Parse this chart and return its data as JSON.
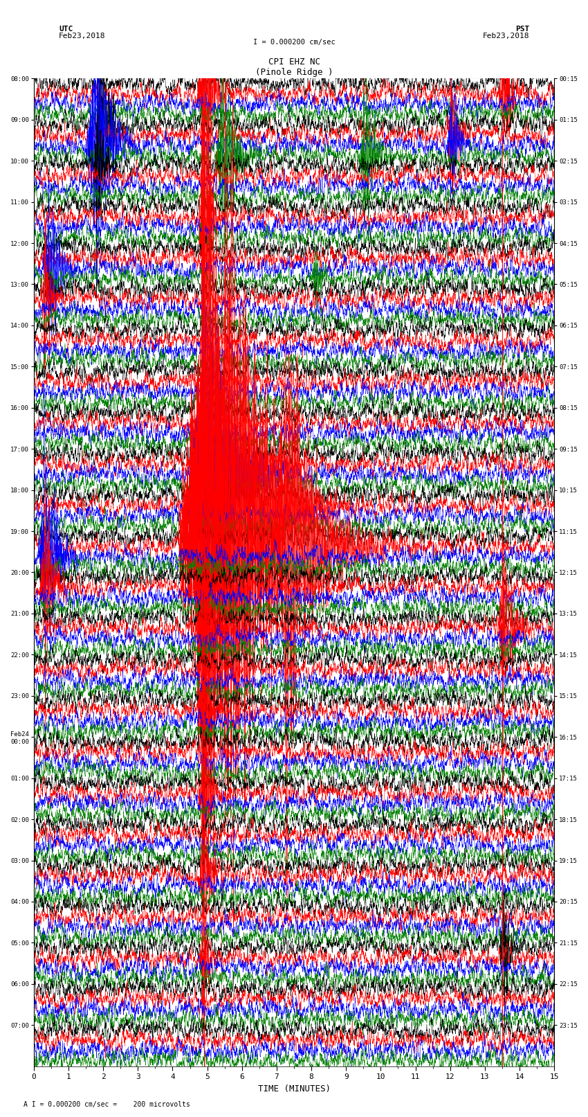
{
  "title_line1": "CPI EHZ NC",
  "title_line2": "(Pinole Ridge )",
  "scale_label": "I = 0.000200 cm/sec",
  "footer_label": "A I = 0.000200 cm/sec =    200 microvolts",
  "utc_label": "UTC\nFeb23,2018",
  "pst_label": "PST\nFeb23,2018",
  "xlabel": "TIME (MINUTES)",
  "left_times": [
    "08:00",
    "09:00",
    "10:00",
    "11:00",
    "12:00",
    "13:00",
    "14:00",
    "15:00",
    "16:00",
    "17:00",
    "18:00",
    "19:00",
    "20:00",
    "21:00",
    "22:00",
    "23:00",
    "Feb24\n00:00",
    "01:00",
    "02:00",
    "03:00",
    "04:00",
    "05:00",
    "06:00",
    "07:00"
  ],
  "right_times": [
    "00:15",
    "01:15",
    "02:15",
    "03:15",
    "04:15",
    "05:15",
    "06:15",
    "07:15",
    "08:15",
    "09:15",
    "10:15",
    "11:15",
    "12:15",
    "13:15",
    "14:15",
    "15:15",
    "16:15",
    "17:15",
    "18:15",
    "19:15",
    "20:15",
    "21:15",
    "22:15",
    "23:15"
  ],
  "n_rows": 24,
  "n_traces_per_row": 4,
  "colors": [
    "black",
    "red",
    "blue",
    "green"
  ],
  "bg_color": "white",
  "xmin": 0,
  "xmax": 15,
  "figwidth": 8.5,
  "figheight": 16.13,
  "dpi": 100,
  "red_verticals": [
    4.9,
    13.5
  ],
  "large_events": [
    {
      "row": 0,
      "trace": 1,
      "minute": 4.85,
      "amplitude": 25,
      "decay": 80
    },
    {
      "row": 0,
      "trace": 1,
      "minute": 13.5,
      "amplitude": 18,
      "decay": 60
    },
    {
      "row": 1,
      "trace": 2,
      "minute": 1.7,
      "amplitude": 30,
      "decay": 120
    },
    {
      "row": 1,
      "trace": 0,
      "minute": 1.9,
      "amplitude": 20,
      "decay": 80
    },
    {
      "row": 1,
      "trace": 3,
      "minute": 5.4,
      "amplitude": 22,
      "decay": 100
    },
    {
      "row": 1,
      "trace": 3,
      "minute": 9.5,
      "amplitude": 18,
      "decay": 80
    },
    {
      "row": 1,
      "trace": 1,
      "minute": 12.0,
      "amplitude": 16,
      "decay": 60
    },
    {
      "row": 1,
      "trace": 2,
      "minute": 12.0,
      "amplitude": 16,
      "decay": 60
    },
    {
      "row": 2,
      "trace": 0,
      "minute": 1.8,
      "amplitude": 15,
      "decay": 60
    },
    {
      "row": 3,
      "trace": 1,
      "minute": 4.85,
      "amplitude": 40,
      "decay": 50
    },
    {
      "row": 4,
      "trace": 2,
      "minute": 0.4,
      "amplitude": 20,
      "decay": 80
    },
    {
      "row": 4,
      "trace": 3,
      "minute": 8.1,
      "amplitude": 12,
      "decay": 40
    },
    {
      "row": 5,
      "trace": 1,
      "minute": 0.3,
      "amplitude": 18,
      "decay": 50
    },
    {
      "row": 9,
      "trace": 1,
      "minute": 4.85,
      "amplitude": 60,
      "decay": 200
    },
    {
      "row": 9,
      "trace": 2,
      "minute": 4.85,
      "amplitude": 50,
      "decay": 200
    },
    {
      "row": 10,
      "trace": 1,
      "minute": 4.85,
      "amplitude": 80,
      "decay": 300
    },
    {
      "row": 10,
      "trace": 1,
      "minute": 5.5,
      "amplitude": 50,
      "decay": 200
    },
    {
      "row": 11,
      "trace": 1,
      "minute": 4.85,
      "amplitude": 100,
      "decay": 400
    },
    {
      "row": 11,
      "trace": 1,
      "minute": 7.2,
      "amplitude": 40,
      "decay": 200
    },
    {
      "row": 11,
      "trace": 2,
      "minute": 0.3,
      "amplitude": 25,
      "decay": 100
    },
    {
      "row": 12,
      "trace": 1,
      "minute": 0.3,
      "amplitude": 20,
      "decay": 80
    },
    {
      "row": 13,
      "trace": 1,
      "minute": 4.85,
      "amplitude": 25,
      "decay": 80
    },
    {
      "row": 13,
      "trace": 1,
      "minute": 13.5,
      "amplitude": 25,
      "decay": 80
    },
    {
      "row": 15,
      "trace": 1,
      "minute": 4.85,
      "amplitude": 20,
      "decay": 60
    },
    {
      "row": 17,
      "trace": 1,
      "minute": 4.85,
      "amplitude": 20,
      "decay": 60
    },
    {
      "row": 19,
      "trace": 1,
      "minute": 4.85,
      "amplitude": 18,
      "decay": 60
    },
    {
      "row": 21,
      "trace": 0,
      "minute": 13.5,
      "amplitude": 16,
      "decay": 50
    },
    {
      "row": 21,
      "trace": 1,
      "minute": 4.85,
      "amplitude": 15,
      "decay": 50
    }
  ]
}
